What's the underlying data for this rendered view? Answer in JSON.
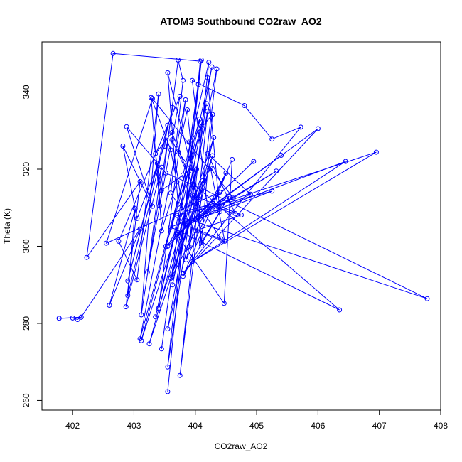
{
  "chart_data": {
    "type": "line",
    "title": "ATOM3 Southbound CO2raw_AO2",
    "xlabel": "CO2raw_AO2",
    "ylabel": "Theta (K)",
    "xlim": [
      401.5,
      408.0
    ],
    "ylim": [
      257.5,
      353.0
    ],
    "x_ticks": [
      402,
      403,
      404,
      405,
      406,
      407,
      408
    ],
    "y_ticks": [
      260,
      280,
      300,
      320,
      340
    ],
    "grid": false,
    "legend": "none",
    "color": "#0000ff",
    "marker": "open-circle",
    "series": [
      {
        "points": [
          [
            401.78,
            281.3
          ],
          [
            402.14,
            281.6
          ],
          [
            402.08,
            281.0
          ],
          [
            402.0,
            281.4
          ],
          [
            401.78,
            281.3
          ],
          [
            402.14,
            281.6
          ],
          [
            403.1,
            304.5
          ],
          [
            402.6,
            284.7
          ],
          [
            403.02,
            309.8
          ],
          [
            402.9,
            287.2
          ],
          [
            403.63,
            336.0
          ],
          [
            403.12,
            282.2
          ],
          [
            403.4,
            339.5
          ],
          [
            403.05,
            291.3
          ],
          [
            402.75,
            301.3
          ],
          [
            403.75,
            338.9
          ],
          [
            403.22,
            293.3
          ],
          [
            403.45,
            320.5
          ],
          [
            402.87,
            284.3
          ],
          [
            403.1,
            316.8
          ],
          [
            402.23,
            297.1
          ],
          [
            402.66,
            350.0
          ],
          [
            404.08,
            348.0
          ],
          [
            403.55,
            262.3
          ],
          [
            404.05,
            342.0
          ],
          [
            403.45,
            273.4
          ],
          [
            404.1,
            348.3
          ],
          [
            403.55,
            268.7
          ],
          [
            404.18,
            337.0
          ],
          [
            403.35,
            281.7
          ],
          [
            404.27,
            346.5
          ],
          [
            403.63,
            290.0
          ],
          [
            404.35,
            346.0
          ],
          [
            403.75,
            266.5
          ],
          [
            404.2,
            335.0
          ],
          [
            403.55,
            278.6
          ],
          [
            404.3,
            328.2
          ],
          [
            403.4,
            283.9
          ],
          [
            403.84,
            338.0
          ],
          [
            403.1,
            276.0
          ],
          [
            404.07,
            333.0
          ],
          [
            403.12,
            275.5
          ],
          [
            404.02,
            320.0
          ],
          [
            403.25,
            274.7
          ],
          [
            404.12,
            317.0
          ],
          [
            403.55,
            300.0
          ],
          [
            404.4,
            314.0
          ],
          [
            402.55,
            300.8
          ],
          [
            403.3,
            338.3
          ],
          [
            404.23,
            320.0
          ],
          [
            403.6,
            291.7
          ],
          [
            404.28,
            323.5
          ],
          [
            403.85,
            296.5
          ],
          [
            404.5,
            319.0
          ],
          [
            403.62,
            292.2
          ],
          [
            404.1,
            331.0
          ],
          [
            403.52,
            300.0
          ],
          [
            404.95,
            322.0
          ],
          [
            403.7,
            303.0
          ],
          [
            404.47,
            285.2
          ],
          [
            404.6,
            322.5
          ],
          [
            403.8,
            292.2
          ],
          [
            404.55,
            313.0
          ],
          [
            403.72,
            303.5
          ],
          [
            405.4,
            323.6
          ],
          [
            403.9,
            306.0
          ],
          [
            406.0,
            330.5
          ],
          [
            403.8,
            293.0
          ],
          [
            405.72,
            330.9
          ],
          [
            405.25,
            327.8
          ],
          [
            404.8,
            336.5
          ],
          [
            403.95,
            343.0
          ],
          [
            404.2,
            310.0
          ],
          [
            406.95,
            324.4
          ],
          [
            403.95,
            296.0
          ],
          [
            406.45,
            322.0
          ],
          [
            403.6,
            305.0
          ],
          [
            406.35,
            283.5
          ],
          [
            403.98,
            316.0
          ],
          [
            407.78,
            286.4
          ],
          [
            403.7,
            308.0
          ],
          [
            405.25,
            314.3
          ],
          [
            404.0,
            306.8
          ],
          [
            405.32,
            319.5
          ],
          [
            404.35,
            309.8
          ],
          [
            404.65,
            308.5
          ],
          [
            404.2,
            324.0
          ],
          [
            404.9,
            313.5
          ],
          [
            403.85,
            305.4
          ],
          [
            404.42,
            301.9
          ],
          [
            403.95,
            313.3
          ],
          [
            404.75,
            308.1
          ],
          [
            404.0,
            304.0
          ],
          [
            404.48,
            301.3
          ],
          [
            404.25,
            320.2
          ],
          [
            404.62,
            312.5
          ],
          [
            403.8,
            308.9
          ],
          [
            403.62,
            327.6
          ],
          [
            404.05,
            312.6
          ],
          [
            404.1,
            300.3
          ],
          [
            403.87,
            335.4
          ],
          [
            403.72,
            324.5
          ],
          [
            403.95,
            319.5
          ],
          [
            403.55,
            345.0
          ],
          [
            403.72,
            310.9
          ],
          [
            403.6,
            313.8
          ],
          [
            403.8,
            343.0
          ],
          [
            403.72,
            348.3
          ],
          [
            403.42,
            310.5
          ],
          [
            403.28,
            338.6
          ],
          [
            403.6,
            325.0
          ],
          [
            403.7,
            316.7
          ],
          [
            403.45,
            304.0
          ],
          [
            403.38,
            321.5
          ],
          [
            402.9,
            291.0
          ],
          [
            403.55,
            331.4
          ],
          [
            403.5,
            326.0
          ],
          [
            403.05,
            307.2
          ],
          [
            402.82,
            326.0
          ],
          [
            403.3,
            310.4
          ],
          [
            402.88,
            331.0
          ],
          [
            403.52,
            319.0
          ],
          [
            403.95,
            316.0
          ],
          [
            403.62,
            329.5
          ],
          [
            403.35,
            324.0
          ],
          [
            403.45,
            314.5
          ],
          [
            403.8,
            318.5
          ],
          [
            404.22,
            347.7
          ],
          [
            403.9,
            300.0
          ],
          [
            404.02,
            311.0
          ],
          [
            403.9,
            327.0
          ],
          [
            404.28,
            334.2
          ],
          [
            404.1,
            301.0
          ],
          [
            404.4,
            309.0
          ],
          [
            404.2,
            343.7
          ]
        ]
      }
    ]
  }
}
